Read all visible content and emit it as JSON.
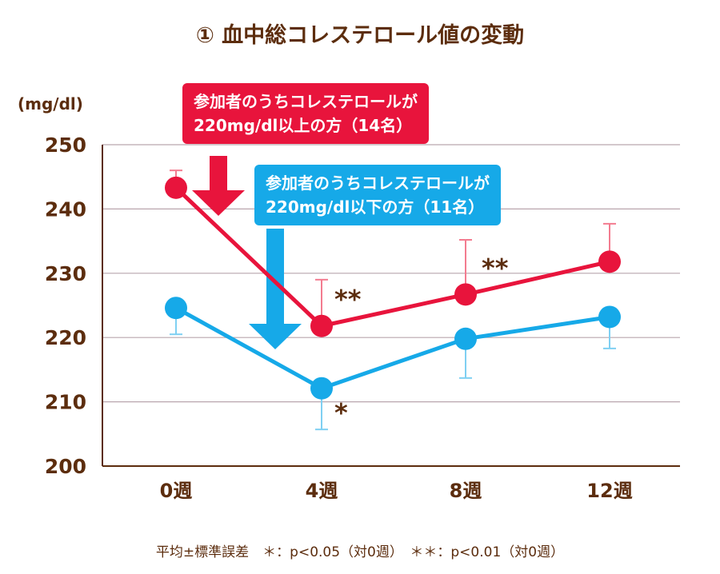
{
  "chart_data": {
    "type": "line",
    "title": "① 血中総コレステロール値の変動",
    "ylabel": "(mg/dl)",
    "categories": [
      "0週",
      "4週",
      "8週",
      "12週"
    ],
    "ylim": [
      200,
      250
    ],
    "yticks": [
      200,
      210,
      220,
      230,
      240,
      250
    ],
    "grid": true,
    "series": [
      {
        "name": "参加者のうちコレステロールが220mg/dl以上の方（14名）",
        "color": "#e8143c",
        "errcolor": "#f37c90",
        "values": [
          243.3,
          221.8,
          226.7,
          231.8
        ],
        "error_upper": [
          246.0,
          229.0,
          235.2,
          237.7
        ],
        "marks": [
          "",
          "**",
          "**",
          ""
        ]
      },
      {
        "name": "参加者のうちコレステロールが220mg/dl以下の方（11名）",
        "color": "#16a9e8",
        "errcolor": "#7fd0f2",
        "values": [
          224.6,
          212.1,
          219.8,
          223.2
        ],
        "error_lower": [
          220.5,
          205.7,
          213.7,
          218.3
        ],
        "marks": [
          "",
          "*",
          "",
          ""
        ]
      }
    ],
    "callouts": [
      {
        "line1": "参加者のうちコレステロールが",
        "line2": "220mg/dl以上の方（14名）"
      },
      {
        "line1": "参加者のうちコレステロールが",
        "line2": "220mg/dl以下の方（11名）"
      }
    ],
    "footnote": "平均±標準誤差　＊：p<0.05（対0週）　＊＊：p<0.01（対0週）"
  }
}
